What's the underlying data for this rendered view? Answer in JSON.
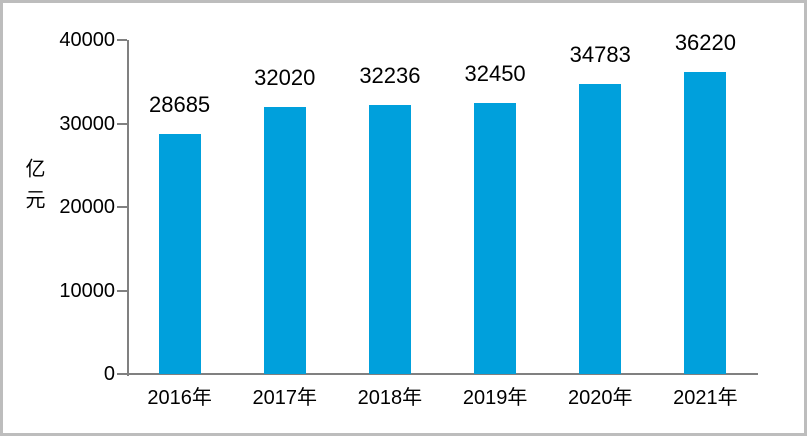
{
  "chart_data": {
    "type": "bar",
    "categories": [
      "2016年",
      "2017年",
      "2018年",
      "2019年",
      "2020年",
      "2021年"
    ],
    "values": [
      28685,
      32020,
      32236,
      32450,
      34783,
      36220
    ],
    "data_labels": [
      "28685",
      "32020",
      "32236",
      "32450",
      "34783",
      "36220"
    ],
    "title": "",
    "xlabel": "",
    "ylabel": "亿元",
    "ylim": [
      0,
      40000
    ],
    "yticks": [
      0,
      10000,
      20000,
      30000,
      40000
    ],
    "ytick_labels": [
      "0",
      "10000",
      "20000",
      "30000",
      "40000"
    ],
    "grid": false,
    "legend_position": "none",
    "bar_color": "#00A0DC",
    "axis_color": "#808080",
    "text_color": "#000000",
    "frame_border_color": "#BDBDBD"
  }
}
